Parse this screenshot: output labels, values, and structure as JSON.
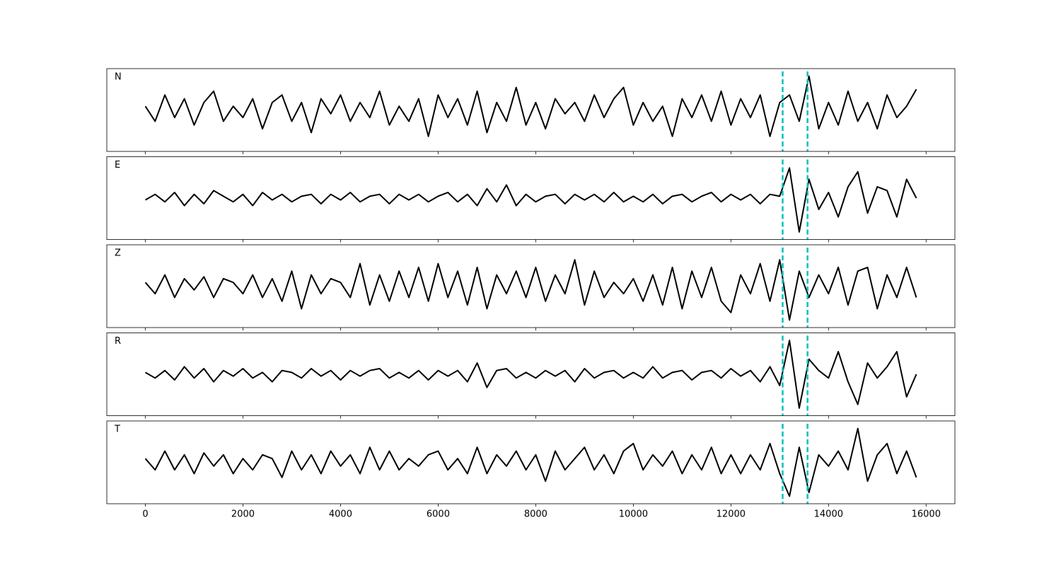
{
  "chart_data": {
    "type": "line",
    "color": "#000000",
    "x": [
      0,
      200,
      400,
      600,
      800,
      1000,
      1200,
      1400,
      1600,
      1800,
      2000,
      2200,
      2400,
      2600,
      2800,
      3000,
      3200,
      3400,
      3600,
      3800,
      4000,
      4200,
      4400,
      4600,
      4800,
      5000,
      5200,
      5400,
      5600,
      5800,
      6000,
      6200,
      6400,
      6600,
      6800,
      7000,
      7200,
      7400,
      7600,
      7800,
      8000,
      8200,
      8400,
      8600,
      8800,
      9000,
      9200,
      9400,
      9600,
      9800,
      10000,
      10200,
      10400,
      10600,
      10800,
      11000,
      11200,
      11400,
      11600,
      11800,
      12000,
      12200,
      12400,
      12600,
      12800,
      13000,
      13200,
      13400,
      13600,
      13800,
      14000,
      14200,
      14400,
      14600,
      14800,
      15000,
      15200,
      15400,
      15600,
      15800
    ],
    "series": [
      {
        "name": "N",
        "color": "#000000",
        "values": [
          0.1,
          -0.3,
          0.4,
          -0.2,
          0.3,
          -0.4,
          0.2,
          0.5,
          -0.3,
          0.1,
          -0.2,
          0.3,
          -0.5,
          0.2,
          0.4,
          -0.3,
          0.2,
          -0.6,
          0.3,
          -0.1,
          0.4,
          -0.3,
          0.2,
          -0.2,
          0.5,
          -0.4,
          0.1,
          -0.3,
          0.3,
          -0.7,
          0.4,
          -0.2,
          0.3,
          -0.4,
          0.5,
          -0.6,
          0.2,
          -0.3,
          0.6,
          -0.4,
          0.2,
          -0.5,
          0.3,
          -0.1,
          0.2,
          -0.3,
          0.4,
          -0.2,
          0.3,
          0.6,
          -0.4,
          0.2,
          -0.3,
          0.1,
          -0.7,
          0.3,
          -0.2,
          0.4,
          -0.3,
          0.5,
          -0.4,
          0.3,
          -0.2,
          0.4,
          -0.7,
          0.2,
          0.4,
          -0.3,
          0.9,
          -0.5,
          0.2,
          -0.4,
          0.5,
          -0.3,
          0.2,
          -0.5,
          0.4,
          -0.2,
          0.1,
          0.55
        ]
      },
      {
        "name": "E",
        "color": "#000000",
        "values": [
          -0.05,
          0.1,
          -0.1,
          0.15,
          -0.2,
          0.1,
          -0.15,
          0.2,
          0.05,
          -0.1,
          0.1,
          -0.2,
          0.15,
          -0.05,
          0.1,
          -0.1,
          0.05,
          0.1,
          -0.15,
          0.1,
          -0.05,
          0.15,
          -0.1,
          0.05,
          0.1,
          -0.15,
          0.1,
          -0.05,
          0.1,
          -0.1,
          0.05,
          0.15,
          -0.1,
          0.1,
          -0.2,
          0.25,
          -0.1,
          0.35,
          -0.2,
          0.1,
          -0.1,
          0.05,
          0.1,
          -0.15,
          0.1,
          -0.05,
          0.1,
          -0.1,
          0.15,
          -0.1,
          0.05,
          -0.1,
          0.1,
          -0.15,
          0.05,
          0.1,
          -0.1,
          0.05,
          0.15,
          -0.1,
          0.1,
          -0.05,
          0.1,
          -0.15,
          0.1,
          0.05,
          0.8,
          -0.9,
          0.5,
          -0.3,
          0.15,
          -0.5,
          0.3,
          0.7,
          -0.4,
          0.3,
          0.2,
          -0.5,
          0.5,
          0.0
        ]
      },
      {
        "name": "Z",
        "color": "#000000",
        "values": [
          0.1,
          -0.2,
          0.3,
          -0.3,
          0.2,
          -0.1,
          0.25,
          -0.3,
          0.2,
          0.1,
          -0.2,
          0.3,
          -0.3,
          0.2,
          -0.4,
          0.4,
          -0.6,
          0.3,
          -0.2,
          0.2,
          0.1,
          -0.3,
          0.6,
          -0.5,
          0.3,
          -0.4,
          0.4,
          -0.3,
          0.5,
          -0.4,
          0.6,
          -0.3,
          0.4,
          -0.5,
          0.5,
          -0.6,
          0.3,
          -0.2,
          0.4,
          -0.3,
          0.5,
          -0.4,
          0.3,
          -0.2,
          0.7,
          -0.5,
          0.4,
          -0.3,
          0.1,
          -0.2,
          0.2,
          -0.4,
          0.3,
          -0.5,
          0.5,
          -0.6,
          0.4,
          -0.3,
          0.5,
          -0.4,
          -0.7,
          0.3,
          -0.2,
          0.6,
          -0.4,
          0.7,
          -0.9,
          0.4,
          -0.3,
          0.3,
          -0.2,
          0.5,
          -0.5,
          0.4,
          0.5,
          -0.6,
          0.3,
          -0.3,
          0.5,
          -0.3
        ]
      },
      {
        "name": "R",
        "color": "#000000",
        "values": [
          0.05,
          -0.1,
          0.1,
          -0.15,
          0.2,
          -0.1,
          0.15,
          -0.2,
          0.1,
          -0.05,
          0.15,
          -0.1,
          0.05,
          -0.2,
          0.1,
          0.05,
          -0.1,
          0.15,
          -0.05,
          0.1,
          -0.15,
          0.1,
          -0.05,
          0.1,
          0.15,
          -0.1,
          0.05,
          -0.1,
          0.1,
          -0.15,
          0.1,
          -0.05,
          0.1,
          -0.2,
          0.3,
          -0.35,
          0.1,
          0.15,
          -0.1,
          0.05,
          -0.1,
          0.1,
          -0.05,
          0.1,
          -0.2,
          0.15,
          -0.1,
          0.05,
          0.1,
          -0.1,
          0.05,
          -0.1,
          0.2,
          -0.1,
          0.05,
          0.1,
          -0.15,
          0.05,
          0.1,
          -0.1,
          0.15,
          -0.05,
          0.1,
          -0.2,
          0.2,
          -0.3,
          0.9,
          -0.9,
          0.4,
          0.1,
          -0.1,
          0.6,
          -0.2,
          -0.8,
          0.3,
          -0.1,
          0.2,
          0.6,
          -0.6,
          0.0
        ]
      },
      {
        "name": "T",
        "color": "#000000",
        "values": [
          0.1,
          -0.2,
          0.3,
          -0.2,
          0.2,
          -0.3,
          0.25,
          -0.1,
          0.2,
          -0.3,
          0.1,
          -0.2,
          0.2,
          0.1,
          -0.4,
          0.3,
          -0.2,
          0.2,
          -0.3,
          0.3,
          -0.1,
          0.2,
          -0.3,
          0.4,
          -0.2,
          0.3,
          -0.2,
          0.1,
          -0.1,
          0.2,
          0.3,
          -0.2,
          0.1,
          -0.3,
          0.4,
          -0.3,
          0.2,
          -0.1,
          0.3,
          -0.2,
          0.2,
          -0.5,
          0.3,
          -0.2,
          0.1,
          0.4,
          -0.2,
          0.2,
          -0.3,
          0.3,
          0.5,
          -0.2,
          0.2,
          -0.1,
          0.3,
          -0.3,
          0.2,
          -0.2,
          0.4,
          -0.3,
          0.2,
          -0.3,
          0.2,
          -0.2,
          0.5,
          -0.3,
          -0.9,
          0.4,
          -0.8,
          0.2,
          -0.1,
          0.3,
          -0.2,
          0.9,
          -0.5,
          0.2,
          0.5,
          -0.3,
          0.3,
          -0.4
        ]
      }
    ],
    "vlines": [
      13060,
      13570
    ],
    "vline_color": "#00bfbf",
    "xlim": [
      -790,
      16590
    ],
    "xticks": [
      0,
      2000,
      4000,
      6000,
      8000,
      10000,
      12000,
      14000,
      16000
    ],
    "ylim": [
      -1.1,
      1.1
    ]
  }
}
